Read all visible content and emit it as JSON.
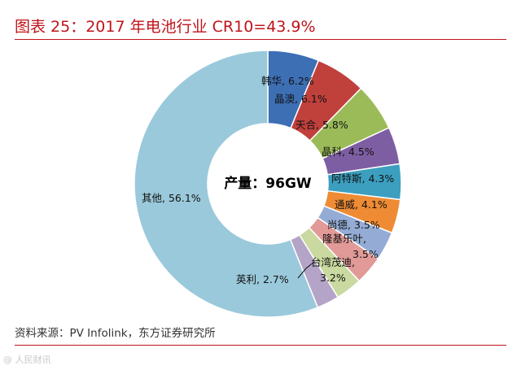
{
  "title": "图表 25：2017 年电池行业 CR10=43.9%",
  "source": "资料来源：PV Infolink，东方证券研究所",
  "watermark": "@ 人民财讯",
  "chart_data": {
    "type": "pie",
    "donut": true,
    "center_text": "产量：96GW",
    "slices": [
      {
        "label": "韩华",
        "value": 6.2,
        "display": "6.2%",
        "color": "#3d6fb5"
      },
      {
        "label": "晶澳",
        "value": 6.1,
        "display": "6.1%",
        "color": "#c0403c"
      },
      {
        "label": "天合",
        "value": 5.8,
        "display": "5.8%",
        "color": "#9bbb59"
      },
      {
        "label": "晶科",
        "value": 4.5,
        "display": "4.5%",
        "color": "#7e5ea3"
      },
      {
        "label": "阿特斯",
        "value": 4.3,
        "display": "4.3%",
        "color": "#3c9fbf"
      },
      {
        "label": "通威",
        "value": 4.1,
        "display": "4.1%",
        "color": "#ee8b34"
      },
      {
        "label": "尚德",
        "value": 3.5,
        "display": "3.5%",
        "color": "#94acd5"
      },
      {
        "label": "隆基乐叶",
        "value": 3.5,
        "display": "3.5%",
        "color": "#e19a97"
      },
      {
        "label": "台湾茂迪",
        "value": 3.2,
        "display": "3.2%",
        "color": "#c9d99f"
      },
      {
        "label": "英利",
        "value": 2.7,
        "display": "2.7%",
        "color": "#b4a4c7"
      },
      {
        "label": "其他",
        "value": 56.1,
        "display": "56.1%",
        "color": "#9ac9db"
      }
    ]
  }
}
